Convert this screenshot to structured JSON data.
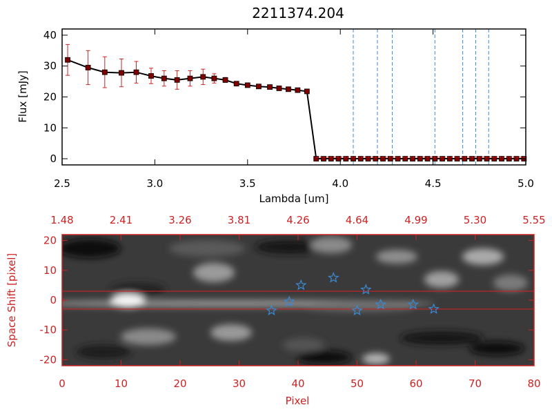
{
  "chart_data": [
    {
      "type": "line",
      "title": "2211374.204",
      "xlabel": "Lambda [um]",
      "ylabel": "Flux [mJy]",
      "xlim": [
        2.5,
        5.0
      ],
      "ylim": [
        -2,
        42
      ],
      "x_ticks": [
        "2.5",
        "3.0",
        "3.5",
        "4.0",
        "4.5",
        "5.0"
      ],
      "y_ticks": [
        "0",
        "10",
        "20",
        "30",
        "40"
      ],
      "series": [
        {
          "x": [
            2.53,
            2.64,
            2.73,
            2.82,
            2.9,
            2.98,
            3.05,
            3.12,
            3.19,
            3.26,
            3.32,
            3.38,
            3.44,
            3.5,
            3.56,
            3.62,
            3.67,
            3.72,
            3.77,
            3.82,
            3.87,
            3.91,
            3.95,
            3.99,
            4.03,
            4.07,
            4.11,
            4.15,
            4.19,
            4.23,
            4.27,
            4.31,
            4.35,
            4.39,
            4.43,
            4.47,
            4.51,
            4.55,
            4.59,
            4.63,
            4.67,
            4.71,
            4.75,
            4.79,
            4.83,
            4.87,
            4.91,
            4.95,
            4.99
          ],
          "y": [
            32,
            29.5,
            28,
            27.8,
            28,
            26.8,
            26,
            25.5,
            26,
            26.5,
            26,
            25.5,
            24.3,
            23.8,
            23.4,
            23.2,
            22.8,
            22.5,
            22.2,
            21.8,
            0,
            0,
            0,
            0,
            0,
            0,
            0,
            0,
            0,
            0,
            0,
            0,
            0,
            0,
            0,
            0,
            0,
            0,
            0,
            0,
            0,
            0,
            0,
            0,
            0,
            0,
            0,
            0,
            0
          ],
          "yerr": [
            5,
            5.5,
            5,
            4.5,
            3.5,
            2.5,
            2.5,
            3,
            2.5,
            2.5,
            1.5,
            0.8,
            0.7,
            0.6,
            0.6,
            0.6,
            0.6,
            0.6,
            0.6,
            0.6,
            0,
            0,
            0,
            0,
            0,
            0,
            0,
            0,
            0,
            0,
            0,
            0,
            0,
            0,
            0,
            0,
            0,
            0,
            0,
            0,
            0,
            0,
            0,
            0,
            0,
            0,
            0,
            0,
            0
          ],
          "color": "#000000",
          "marker_color": "#800000",
          "error_color": "#cc2222"
        }
      ],
      "vertical_lines": [
        4.07,
        4.2,
        4.28,
        4.51,
        4.66,
        4.73,
        4.8
      ],
      "vertical_line_color": "#3a8ad6"
    },
    {
      "type": "heatmap",
      "xlabel": "Pixel",
      "ylabel": "Space Shift [pixel]",
      "xlim": [
        0,
        80
      ],
      "ylim": [
        -22,
        22
      ],
      "x_ticks": [
        "0",
        "10",
        "20",
        "30",
        "40",
        "50",
        "60",
        "70",
        "80"
      ],
      "y_ticks": [
        "-20",
        "-10",
        "0",
        "10",
        "20"
      ],
      "top_ticks": [
        "1.48",
        "2.41",
        "3.26",
        "3.81",
        "4.26",
        "4.64",
        "4.99",
        "5.30",
        "5.55"
      ],
      "horizontal_lines": [
        3,
        -3
      ],
      "stars": [
        {
          "x": 35.5,
          "y": -3.5
        },
        {
          "x": 38.5,
          "y": -0.5
        },
        {
          "x": 40.5,
          "y": 5
        },
        {
          "x": 46,
          "y": 7.5
        },
        {
          "x": 50,
          "y": -3.5
        },
        {
          "x": 51.5,
          "y": 3.5
        },
        {
          "x": 54,
          "y": -1.5
        },
        {
          "x": 59.5,
          "y": -1.5
        },
        {
          "x": 63,
          "y": -3
        }
      ],
      "star_color": "#3a8ad6",
      "axis_color": "#cc2222"
    }
  ]
}
